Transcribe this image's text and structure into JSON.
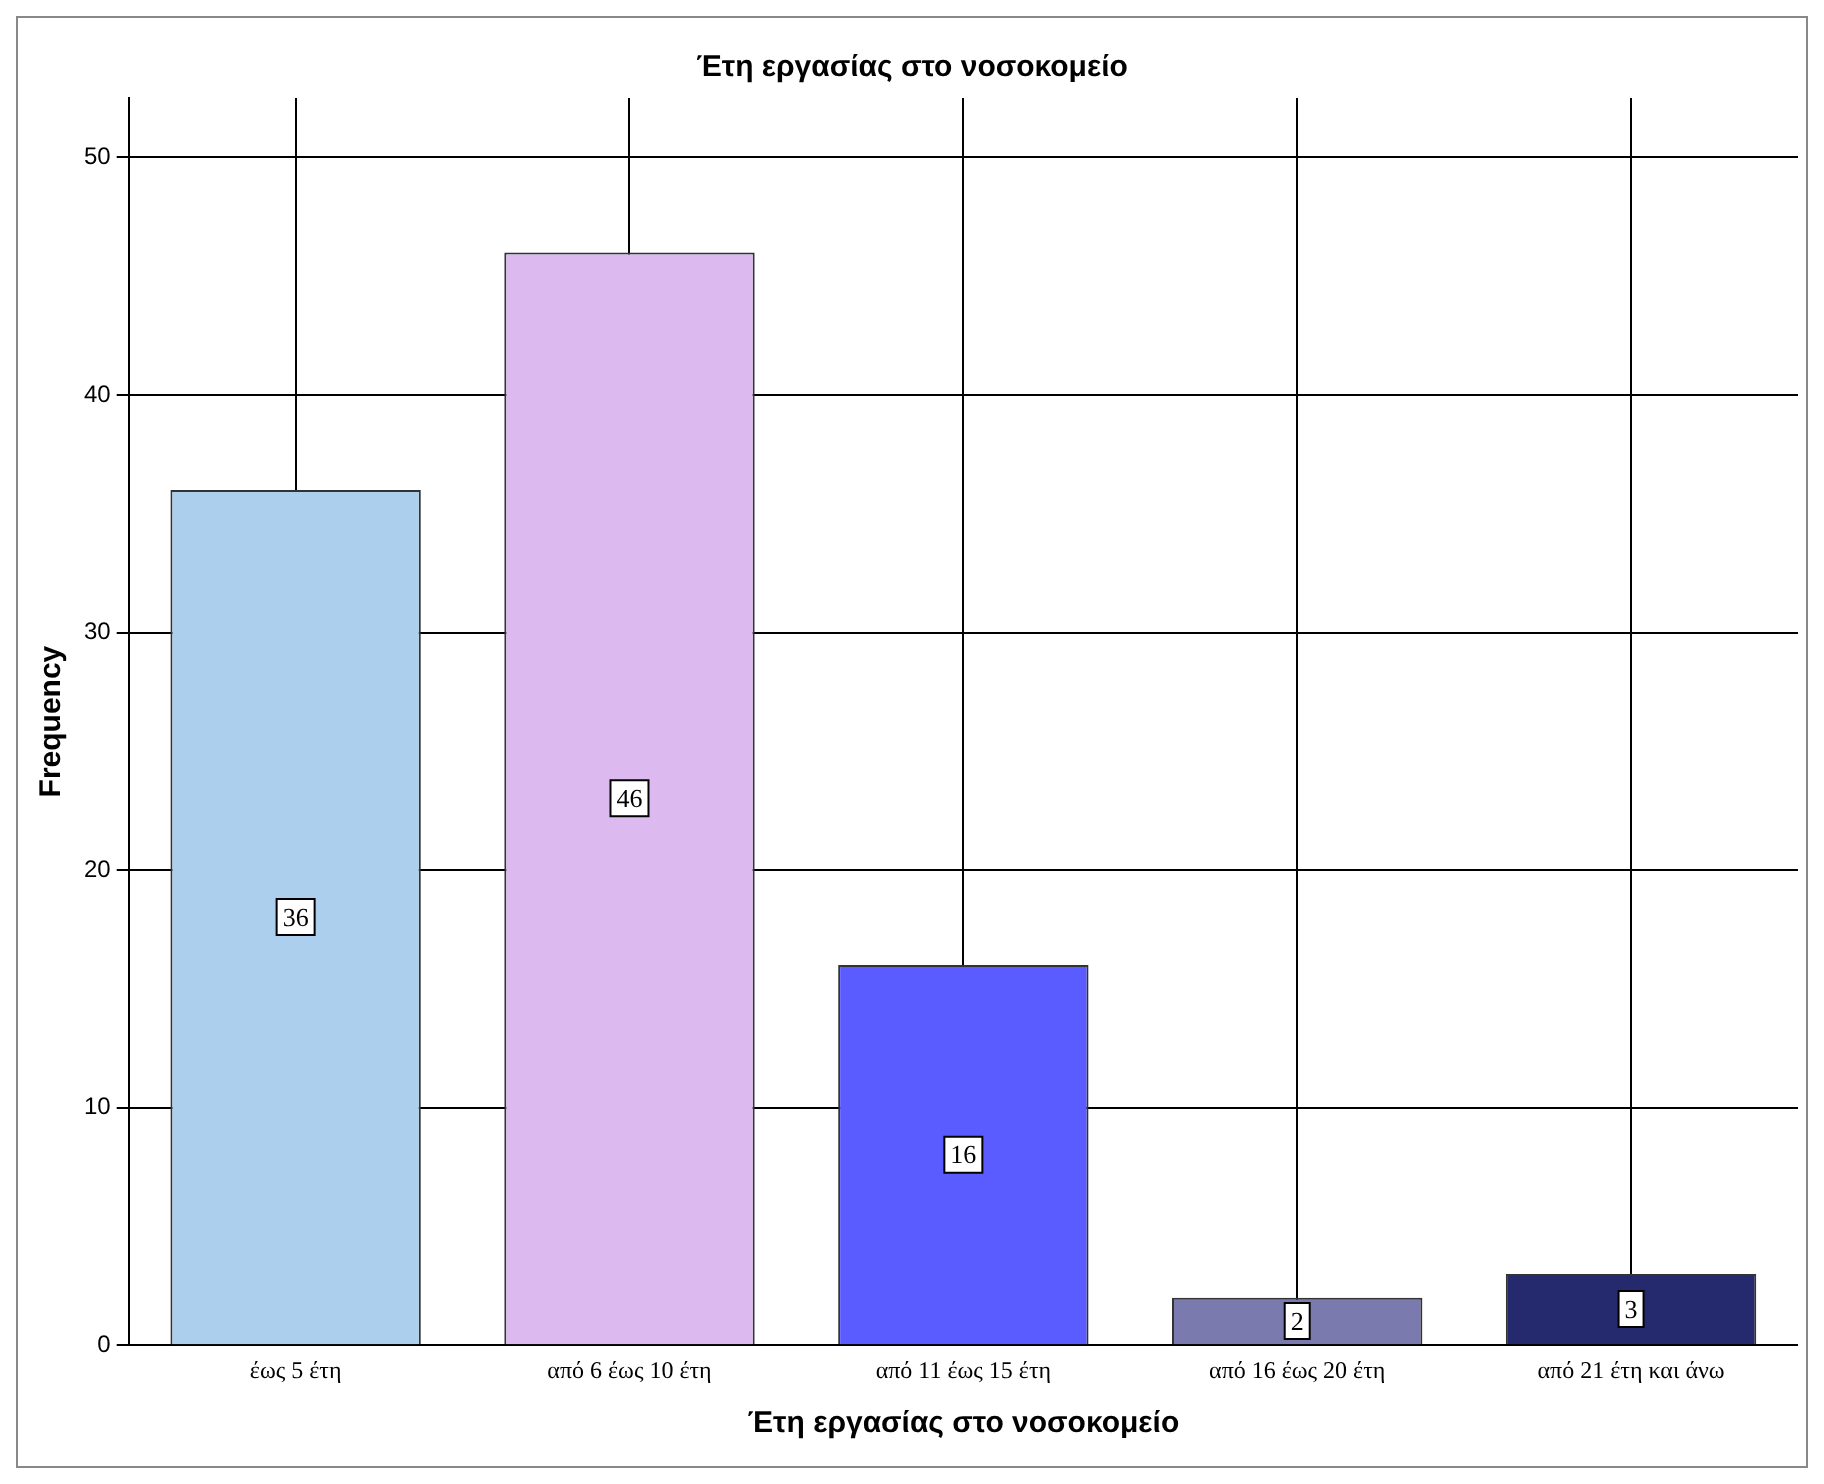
{
  "chart_data": {
    "type": "bar",
    "title": "Έτη εργασίας στο νοσοκομείο",
    "xlabel": "Έτη εργασίας στο νοσοκομείο",
    "ylabel": "Frequency",
    "categories": [
      "έως 5 έτη",
      "από 6 έως 10 έτη",
      "από 11 έως 15 έτη",
      "από 16 έως 20 έτη",
      "από 21 έτη και άνω"
    ],
    "values": [
      36,
      46,
      16,
      2,
      3
    ],
    "colors": [
      "#abcfec",
      "#dcbaf0",
      "#5b5cff",
      "#7b7aae",
      "#252a6e"
    ],
    "ylim": [
      0,
      52.5
    ],
    "yticks": [
      0,
      10,
      20,
      30,
      40,
      50
    ],
    "grid": true,
    "data_labels": true,
    "legend": false
  }
}
